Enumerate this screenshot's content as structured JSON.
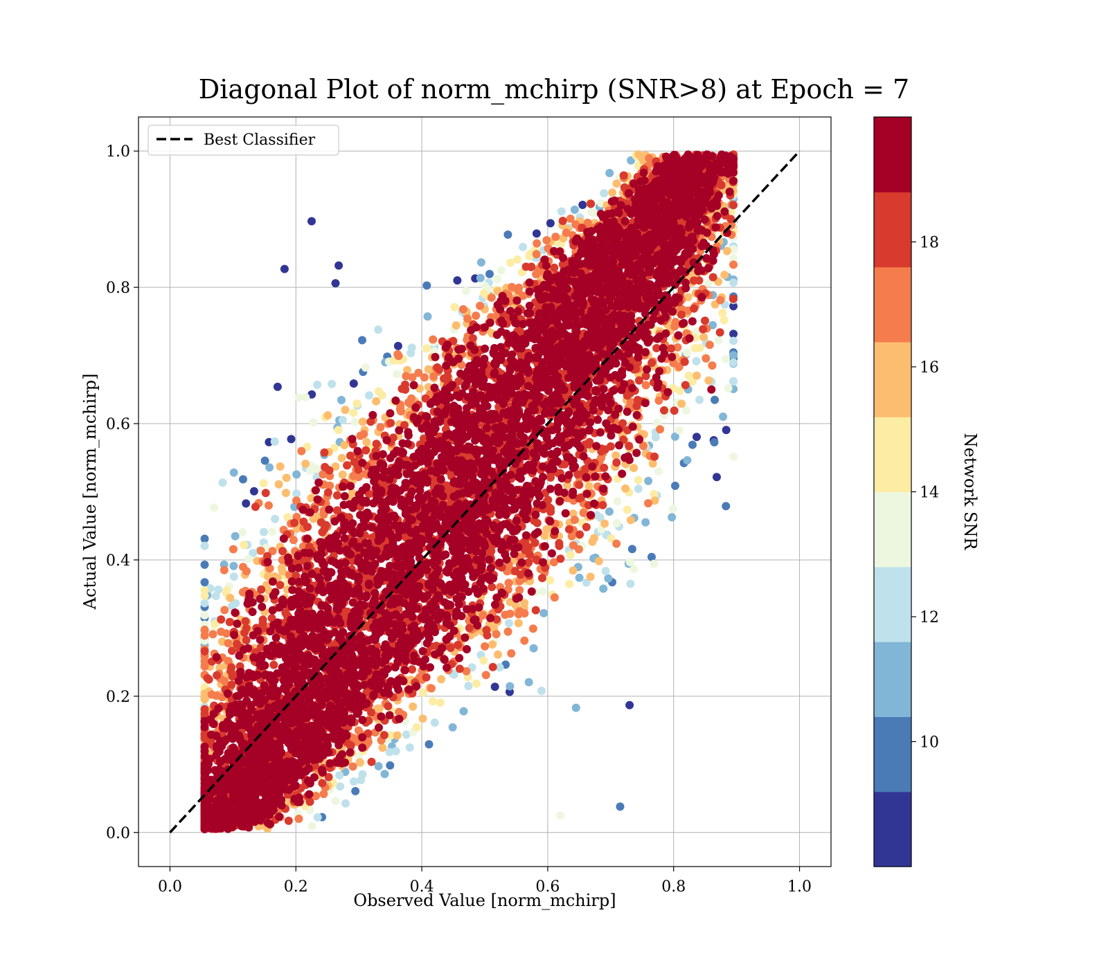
{
  "chart_data": {
    "type": "scatter",
    "title": "Diagonal Plot of norm_mchirp (SNR>8) at Epoch = 7",
    "xlabel": "Observed Value [norm_mchirp]",
    "ylabel": "Actual Value [norm_mchirp]",
    "xlim": [
      -0.05,
      1.05
    ],
    "ylim": [
      -0.05,
      1.05
    ],
    "xticks": [
      "0.0",
      "0.2",
      "0.4",
      "0.6",
      "0.8",
      "1.0"
    ],
    "yticks": [
      "0.0",
      "0.2",
      "0.4",
      "0.6",
      "0.8",
      "1.0"
    ],
    "grid": true,
    "legend": {
      "placement": "upper-left",
      "entries": [
        {
          "label": "Best Classifier",
          "style": "dashed",
          "color": "#000000"
        }
      ]
    },
    "reference_line": {
      "label": "Best Classifier",
      "x": [
        0.0,
        1.0
      ],
      "y": [
        0.0,
        1.0
      ]
    },
    "colorbar": {
      "label": "Network SNR",
      "range": [
        8,
        20
      ],
      "ticks": [
        "10",
        "12",
        "14",
        "16",
        "18"
      ],
      "tick_values": [
        10,
        12,
        14,
        16,
        18
      ],
      "colors": [
        "#313695",
        "#4575b4",
        "#74add1",
        "#abd9e9",
        "#e0f3f8",
        "#fee090",
        "#fdae61",
        "#f46d43",
        "#d73027",
        "#a50026"
      ],
      "display_colors": [
        "#313695",
        "#4a7bb7",
        "#81b6d6",
        "#bfe1eb",
        "#edf7e0",
        "#fdeca4",
        "#fdbd6f",
        "#f57c4d",
        "#d93a2e",
        "#a50026"
      ]
    },
    "point_summary": {
      "observed_range": [
        0.06,
        0.89
      ],
      "actual_range": [
        0.0,
        1.0
      ],
      "note_free": "",
      "sample_points": [
        {
          "x": 0.225,
          "y": 0.897,
          "snr": 8.5
        },
        {
          "x": 0.182,
          "y": 0.827,
          "snr": 8.5
        },
        {
          "x": 0.268,
          "y": 0.832,
          "snr": 8.5
        },
        {
          "x": 0.263,
          "y": 0.806,
          "snr": 8.5
        },
        {
          "x": 0.171,
          "y": 0.654,
          "snr": 8.5
        },
        {
          "x": 0.715,
          "y": 0.038,
          "snr": 9.5
        },
        {
          "x": 0.73,
          "y": 0.187,
          "snr": 8.5
        },
        {
          "x": 0.645,
          "y": 0.183,
          "snr": 10.5
        },
        {
          "x": 0.62,
          "y": 0.025,
          "snr": 13.5
        },
        {
          "x": 0.89,
          "y": 0.935,
          "snr": 18.5
        },
        {
          "x": 0.885,
          "y": 0.88,
          "snr": 19.5
        },
        {
          "x": 0.86,
          "y": 0.65,
          "snr": 19.5
        }
      ]
    }
  }
}
